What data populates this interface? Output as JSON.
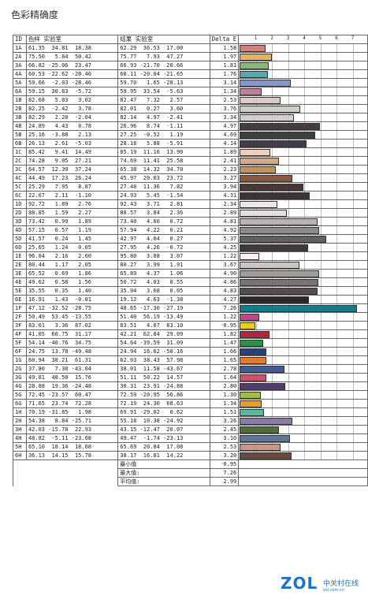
{
  "title": "色彩精确度",
  "header": {
    "id": "ID",
    "ref": "色样 实验室",
    "res": "结果 实验室",
    "de": "Delta E",
    "ticks": [
      "1",
      "2",
      "3",
      "4",
      "5",
      "6",
      "7"
    ]
  },
  "rows": [
    {
      "id": "1A",
      "ref": "61.35  34.81  18.38",
      "res": "62.29  36.53  17.00",
      "de": "1.58",
      "color": "#d5807a"
    },
    {
      "id": "2A",
      "ref": "75.50   5.84  50.42",
      "res": "75.77   7.93  47.27",
      "de": "1.97",
      "color": "#e2b55a"
    },
    {
      "id": "3A",
      "ref": "66.82 -25.06  23.47",
      "res": "66.93 -21.70  20.66",
      "de": "1.81",
      "color": "#8fb47a"
    },
    {
      "id": "4A",
      "ref": "60.53 -22.62 -20.40",
      "res": "60.11 -20.04 -21.65",
      "de": "1.76",
      "color": "#56a8b0"
    },
    {
      "id": "5A",
      "ref": "59.66  -2.03 -28.46",
      "res": "59.70   1.65 -28.13",
      "de": "3.14",
      "color": "#8795c8"
    },
    {
      "id": "6A",
      "ref": "59.15  30.83  -5.72",
      "res": "59.95  33.54  -5.63",
      "de": "1.34",
      "color": "#c37f99"
    },
    {
      "id": "1B",
      "ref": "82.68   5.03   3.02",
      "res": "82.47   7.32   2.57",
      "de": "2.53",
      "color": "#dccac6"
    },
    {
      "id": "2B",
      "ref": "82.25  -2.42   3.78",
      "res": "82.01   0.27   3.60",
      "de": "3.76",
      "color": "#cfd0c7"
    },
    {
      "id": "3B",
      "ref": "82.29   2.20  -2.04",
      "res": "82.14   4.97  -2.41",
      "de": "3.34",
      "color": "#d2ccd3"
    },
    {
      "id": "4B",
      "ref": "24.89   4.43   0.78",
      "res": "26.96   8.74  -1.11",
      "de": "4.97",
      "color": "#463c3f"
    },
    {
      "id": "5B",
      "ref": "25.16  -3.88   2.13",
      "res": "27.25  -0.52   1.19",
      "de": "4.69",
      "color": "#3c403c"
    },
    {
      "id": "6B",
      "ref": "26.13   2.61  -5.03",
      "res": "28.18   5.88  -5.91",
      "de": "4.14",
      "color": "#403d48"
    },
    {
      "id": "1C",
      "ref": "85.42   9.41  14.49",
      "res": "85.19  11.16  13.90",
      "de": "1.89",
      "color": "#f0cdb4"
    },
    {
      "id": "2C",
      "ref": "74.28   9.05  27.21",
      "res": "74.69  11.41  25.58",
      "de": "2.41",
      "color": "#d4a98a"
    },
    {
      "id": "3C",
      "ref": "64.57  12.39  37.24",
      "res": "65.38  14.32  34.70",
      "de": "2.23",
      "color": "#c0935e"
    },
    {
      "id": "4C",
      "ref": "44.49  17.23  26.24",
      "res": "45.97  20.03  23.72",
      "de": "3.27",
      "color": "#8a5a3e"
    },
    {
      "id": "5C",
      "ref": "25.29   7.95   8.87",
      "res": "27.48  11.36   7.82",
      "de": "3.94",
      "color": "#4a3632"
    },
    {
      "id": "6C",
      "ref": "22.67   2.11  -1.10",
      "res": "24.93   5.45  -1.54",
      "de": "4.31",
      "color": "#3a3538"
    },
    {
      "id": "1D",
      "ref": "92.72   1.89   2.76",
      "res": "92.43   3.71   2.81",
      "de": "2.34",
      "color": "#ece8e5"
    },
    {
      "id": "2D",
      "ref": "88.85   1.59   2.27",
      "res": "88.57   3.84   2.36",
      "de": "2.89",
      "color": "#e4dfdc"
    },
    {
      "id": "3D",
      "ref": "73.42   0.99   1.89",
      "res": "73.40   4.60   0.72",
      "de": "4.81",
      "color": "#b8b3b2"
    },
    {
      "id": "4D",
      "ref": "57.15   0.57   1.19",
      "res": "57.94   4.22   0.21",
      "de": "4.92",
      "color": "#8d898a"
    },
    {
      "id": "5D",
      "ref": "41.57   0.24   1.45",
      "res": "42.97   4.04   0.27",
      "de": "5.37",
      "color": "#65605f"
    },
    {
      "id": "6D",
      "ref": "25.65   1.24   0.05",
      "res": "27.95   4.26  -0.72",
      "de": "4.25",
      "color": "#3e3a3b"
    },
    {
      "id": "1E",
      "ref": "96.04   2.16   2.60",
      "res": "95.80   3.08   3.07",
      "de": "1.22",
      "color": "#f6f1ee"
    },
    {
      "id": "2E",
      "ref": "80.44   1.17   2.05",
      "res": "80.27   3.99   1.91",
      "de": "3.67",
      "color": "#cbc6c4"
    },
    {
      "id": "3E",
      "ref": "65.52   0.69   1.86",
      "res": "65.89   4.37   1.06",
      "de": "4.90",
      "color": "#a19c9c"
    },
    {
      "id": "4E",
      "ref": "49.62   0.58   1.56",
      "res": "50.72   4.03   0.55",
      "de": "4.86",
      "color": "#777373"
    },
    {
      "id": "5E",
      "ref": "35.55   0.35   1.40",
      "res": "35.04   3.68   0.05",
      "de": "4.83",
      "color": "#524e4e"
    },
    {
      "id": "6E",
      "ref": "16.91   1.43  -0.81",
      "res": "19.12   4.63  -1.38",
      "de": "4.27",
      "color": "#2c2829"
    },
    {
      "id": "1F",
      "ref": "47.12 -32.52 -28.75",
      "res": "48.65 -17.30 -27.19",
      "de": "7.26",
      "color": "#157a8e"
    },
    {
      "id": "2F",
      "ref": "50.49  53.45 -13.55",
      "res": "51.40  56.19 -13.49",
      "de": "1.22",
      "color": "#c0458b"
    },
    {
      "id": "3F",
      "ref": "83.61   3.36  87.02",
      "res": "83.51   4.07  83.10",
      "de": "0.95",
      "color": "#f1cc1e"
    },
    {
      "id": "4F",
      "ref": "41.05  60.75  31.17",
      "res": "42.21  62.84  29.09",
      "de": "1.82",
      "color": "#b5233c"
    },
    {
      "id": "5F",
      "ref": "54.14 -40.76  34.75",
      "res": "54.64 -39.59  31.09",
      "de": "1.47",
      "color": "#2f8e46"
    },
    {
      "id": "6F",
      "ref": "24.75  13.78 -49.48",
      "res": "24.94  16.62 -50.16",
      "de": "1.66",
      "color": "#283f86"
    },
    {
      "id": "1G",
      "ref": "60.94  38.21  61.31",
      "res": "62.03  38.43  57.98",
      "de": "1.65",
      "color": "#df7b32"
    },
    {
      "id": "2G",
      "ref": "37.80   7.30 -43.04",
      "res": "38.01  11.58 -43.67",
      "de": "2.78",
      "color": "#3f5a97"
    },
    {
      "id": "3G",
      "ref": "49.81  48.50  15.76",
      "res": "51.11  50.22  14.57",
      "de": "1.64",
      "color": "#c25569"
    },
    {
      "id": "4G",
      "ref": "28.88  19.36 -24.48",
      "res": "30.31  23.91 -24.88",
      "de": "2.80",
      "color": "#513a6c"
    },
    {
      "id": "5G",
      "ref": "72.45 -23.57  60.47",
      "res": "72.59 -20.95  56.86",
      "de": "1.30",
      "color": "#a1be43"
    },
    {
      "id": "6G",
      "ref": "71.65  23.74  72.28",
      "res": "72.19  24.30  68.63",
      "de": "1.34",
      "color": "#e79e28"
    },
    {
      "id": "1H",
      "ref": "70.19 -31.85   1.98",
      "res": "69.91 -29.02   0.62",
      "de": "1.51",
      "color": "#5fb69e"
    },
    {
      "id": "2H",
      "ref": "54.38   8.84 -25.71",
      "res": "55.18  10.38 -24.92",
      "de": "3.26",
      "color": "#8a7ca6"
    },
    {
      "id": "3H",
      "ref": "42.03 -15.78  22.93",
      "res": "43.15 -12.47  20.07",
      "de": "2.45",
      "color": "#566b3c"
    },
    {
      "id": "4H",
      "ref": "48.82  -5.11 -23.08",
      "res": "49.47  -1.74 -23.13",
      "de": "3.10",
      "color": "#5a749a"
    },
    {
      "id": "5H",
      "ref": "65.10  18.14  18.68",
      "res": "65.69  20.84  17.08",
      "de": "2.53",
      "color": "#c89688"
    },
    {
      "id": "6H",
      "ref": "36.13  14.15  15.78",
      "res": "38.17  16.81  14.22",
      "de": "3.20",
      "color": "#6a4a40"
    }
  ],
  "summary": [
    {
      "label": "最小值",
      "value": "0.95"
    },
    {
      "label": "最大值:",
      "value": "7.26"
    },
    {
      "label": "平均值:",
      "value": "2.99"
    }
  ],
  "watermark": {
    "logo": "ZOL",
    "cn": "中关村在线",
    "sub": "zol.com.cn"
  }
}
